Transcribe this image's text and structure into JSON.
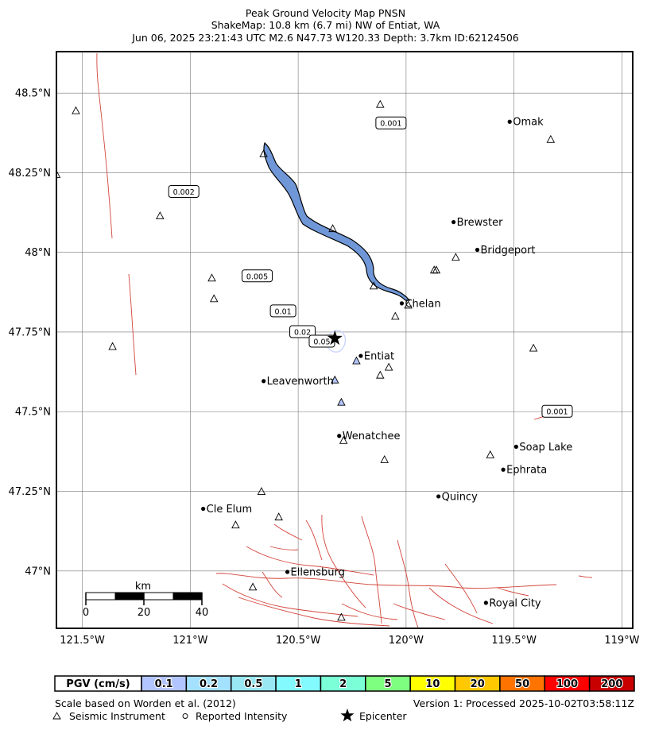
{
  "header": {
    "line1": "Peak Ground Velocity Map PNSN",
    "line2": "ShakeMap: 10.8 km (6.7 mi) NW of Entiat, WA",
    "line3": "Jun 06, 2025 23:21:43 UTC M2.6 N47.73 W120.33 Depth: 3.7km ID:62124506"
  },
  "map": {
    "lon_range": [
      -121.62,
      -118.95
    ],
    "lat_range": [
      46.82,
      48.63
    ],
    "lon_ticks": [
      {
        "value": -121.5,
        "label": "121.5°W"
      },
      {
        "value": -121.0,
        "label": "121°W"
      },
      {
        "value": -120.5,
        "label": "120.5°W"
      },
      {
        "value": -120.0,
        "label": "120°W"
      },
      {
        "value": -119.5,
        "label": "119.5°W"
      },
      {
        "value": -119.0,
        "label": "119°W"
      }
    ],
    "lat_ticks": [
      {
        "value": 48.5,
        "label": "48.5°N"
      },
      {
        "value": 48.25,
        "label": "48.25°N"
      },
      {
        "value": 48.0,
        "label": "48°N"
      },
      {
        "value": 47.75,
        "label": "47.75°N"
      },
      {
        "value": 47.5,
        "label": "47.5°N"
      },
      {
        "value": 47.25,
        "label": "47.25°N"
      },
      {
        "value": 47.0,
        "label": "47°N"
      }
    ],
    "cities": [
      {
        "name": "Omak",
        "lon": -119.52,
        "lat": 48.41
      },
      {
        "name": "Brewster",
        "lon": -119.78,
        "lat": 48.095
      },
      {
        "name": "Bridgeport",
        "lon": -119.67,
        "lat": 48.008
      },
      {
        "name": "Chelan",
        "lon": -120.02,
        "lat": 47.84
      },
      {
        "name": "Entiat",
        "lon": -120.21,
        "lat": 47.675
      },
      {
        "name": "Leavenworth",
        "lon": -120.66,
        "lat": 47.596
      },
      {
        "name": "Wenatchee",
        "lon": -120.31,
        "lat": 47.424
      },
      {
        "name": "Soap Lake",
        "lon": -119.49,
        "lat": 47.39
      },
      {
        "name": "Ephrata",
        "lon": -119.55,
        "lat": 47.318
      },
      {
        "name": "Quincy",
        "lon": -119.85,
        "lat": 47.234
      },
      {
        "name": "Cle Elum",
        "lon": -120.94,
        "lat": 47.195
      },
      {
        "name": "Ellensburg",
        "lon": -120.55,
        "lat": 46.997
      },
      {
        "name": "Royal City",
        "lon": -119.63,
        "lat": 46.9
      }
    ],
    "epicenter": {
      "lon": -120.33,
      "lat": 47.73
    },
    "stations": [
      {
        "lon": -121.53,
        "lat": 48.445,
        "filled": false
      },
      {
        "lon": -121.62,
        "lat": 48.245,
        "filled": false
      },
      {
        "lon": -121.14,
        "lat": 48.115,
        "filled": false
      },
      {
        "lon": -120.66,
        "lat": 48.31,
        "filled": false
      },
      {
        "lon": -120.12,
        "lat": 48.465,
        "filled": false
      },
      {
        "lon": -119.33,
        "lat": 48.355,
        "filled": false
      },
      {
        "lon": -120.34,
        "lat": 48.075,
        "filled": false
      },
      {
        "lon": -119.87,
        "lat": 47.945,
        "filled": false
      },
      {
        "lon": -119.86,
        "lat": 47.945,
        "filled": false
      },
      {
        "lon": -119.77,
        "lat": 47.985,
        "filled": false
      },
      {
        "lon": -120.15,
        "lat": 47.895,
        "filled": false
      },
      {
        "lon": -120.05,
        "lat": 47.8,
        "filled": false
      },
      {
        "lon": -119.99,
        "lat": 47.835,
        "filled": false
      },
      {
        "lon": -120.9,
        "lat": 47.92,
        "filled": false
      },
      {
        "lon": -120.89,
        "lat": 47.855,
        "filled": false
      },
      {
        "lon": -121.36,
        "lat": 47.705,
        "filled": false
      },
      {
        "lon": -119.41,
        "lat": 47.7,
        "filled": false
      },
      {
        "lon": -120.23,
        "lat": 47.66,
        "filled": true
      },
      {
        "lon": -120.08,
        "lat": 47.64,
        "filled": false
      },
      {
        "lon": -120.12,
        "lat": 47.615,
        "filled": false
      },
      {
        "lon": -120.33,
        "lat": 47.6,
        "filled": true
      },
      {
        "lon": -120.3,
        "lat": 47.53,
        "filled": true
      },
      {
        "lon": -120.29,
        "lat": 47.41,
        "filled": false
      },
      {
        "lon": -120.1,
        "lat": 47.35,
        "filled": false
      },
      {
        "lon": -119.61,
        "lat": 47.365,
        "filled": false
      },
      {
        "lon": -120.67,
        "lat": 47.25,
        "filled": false
      },
      {
        "lon": -120.59,
        "lat": 47.17,
        "filled": false
      },
      {
        "lon": -120.79,
        "lat": 47.145,
        "filled": false
      },
      {
        "lon": -120.71,
        "lat": 46.95,
        "filled": false
      },
      {
        "lon": -120.3,
        "lat": 46.855,
        "filled": false
      }
    ],
    "contour_labels": [
      {
        "text": "0.001",
        "lon": -120.07,
        "lat": 48.405
      },
      {
        "text": "0.002",
        "lon": -121.03,
        "lat": 48.19
      },
      {
        "text": "0.005",
        "lon": -120.69,
        "lat": 47.925
      },
      {
        "text": "0.01",
        "lon": -120.57,
        "lat": 47.815
      },
      {
        "text": "0.02",
        "lon": -120.48,
        "lat": 47.75
      },
      {
        "text": "0.05",
        "lon": -120.39,
        "lat": 47.72
      },
      {
        "text": "0.001",
        "lon": -119.3,
        "lat": 47.5
      }
    ],
    "lake_color": "#6f97d8",
    "fault_color": "#d2453b",
    "scale_bar": {
      "unit": "km",
      "labels": [
        "0",
        "20",
        "40"
      ]
    }
  },
  "pgv_scale": {
    "label": "PGV (cm/s)",
    "bins": [
      {
        "text": "0.1",
        "color": "#b3c5ff"
      },
      {
        "text": "0.2",
        "color": "#a4e1ff"
      },
      {
        "text": "0.5",
        "color": "#99e7f3"
      },
      {
        "text": "1",
        "color": "#83fbfe"
      },
      {
        "text": "2",
        "color": "#7affd6"
      },
      {
        "text": "5",
        "color": "#7fff7f"
      },
      {
        "text": "10",
        "color": "#ffff00"
      },
      {
        "text": "20",
        "color": "#ffc800"
      },
      {
        "text": "50",
        "color": "#ff7300"
      },
      {
        "text": "100",
        "color": "#ff0000"
      },
      {
        "text": "200",
        "color": "#c80000"
      }
    ]
  },
  "footer": {
    "scale_note": "Scale based on Worden et al. (2012)",
    "version": "Version 1: Processed 2025-10-02T03:58:11Z",
    "legend_instrument": "Seismic Instrument",
    "legend_intensity": "Reported Intensity",
    "legend_epicenter": "Epicenter"
  }
}
